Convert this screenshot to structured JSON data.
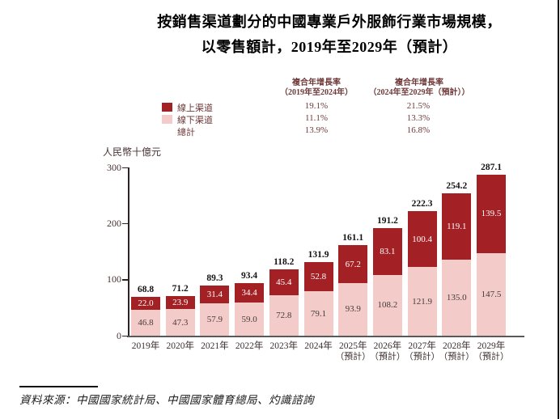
{
  "title": {
    "line1": "按銷售渠道劃分的中國專業戶外服飾行業市場規模，",
    "line2": "以零售額計，2019年至2029年（預計）"
  },
  "cagr_table": {
    "col1_header_line1": "複合年增長率",
    "col1_header_line2": "（2019年至2024年）",
    "col2_header_line1": "複合年增長率",
    "col2_header_line2": "（2024年至2029年（預計））",
    "rows": [
      {
        "label": "線上渠道",
        "swatch": "#a32025",
        "col1": "19.1%",
        "col2": "21.5%"
      },
      {
        "label": "線下渠道",
        "swatch": "#f3cbc8",
        "col1": "11.1%",
        "col2": "13.3%"
      },
      {
        "label": "總計",
        "swatch": null,
        "col1": "13.9%",
        "col2": "16.8%"
      }
    ]
  },
  "chart_data": {
    "type": "bar",
    "stacked": true,
    "title": "按銷售渠道劃分的中國專業戶外服飾行業市場規模，以零售額計，2019年至2029年（預計）",
    "unit_label": "人民幣十億元",
    "ylim": [
      0,
      300
    ],
    "yticks": [
      0,
      100,
      200,
      300
    ],
    "grid": false,
    "legend_position": "top-left",
    "categories": [
      {
        "label": "2019年",
        "note": ""
      },
      {
        "label": "2020年",
        "note": ""
      },
      {
        "label": "2021年",
        "note": ""
      },
      {
        "label": "2022年",
        "note": ""
      },
      {
        "label": "2023年",
        "note": ""
      },
      {
        "label": "2024年",
        "note": ""
      },
      {
        "label": "2025年",
        "note": "（預計）"
      },
      {
        "label": "2026年",
        "note": "（預計）"
      },
      {
        "label": "2027年",
        "note": "（預計）"
      },
      {
        "label": "2028年",
        "note": "（預計）"
      },
      {
        "label": "2029年",
        "note": "（預計）"
      }
    ],
    "series": [
      {
        "name": "線下渠道",
        "color": "#f3cbc8",
        "label_color": "#453c3c",
        "values": [
          46.8,
          47.3,
          57.9,
          59.0,
          72.8,
          79.1,
          93.9,
          108.2,
          121.9,
          135.0,
          147.5
        ]
      },
      {
        "name": "線上渠道",
        "color": "#a32025",
        "label_color": "#ffffff",
        "values": [
          22.0,
          23.9,
          31.4,
          34.4,
          45.4,
          52.8,
          67.2,
          83.1,
          100.4,
          119.1,
          139.5
        ]
      }
    ],
    "totals": [
      68.8,
      71.2,
      89.3,
      93.4,
      118.2,
      131.9,
      161.1,
      191.2,
      222.3,
      254.2,
      287.1
    ]
  },
  "source": {
    "text": "資料來源：中國國家統計局、中國國家體育總局、灼識諮詢"
  }
}
